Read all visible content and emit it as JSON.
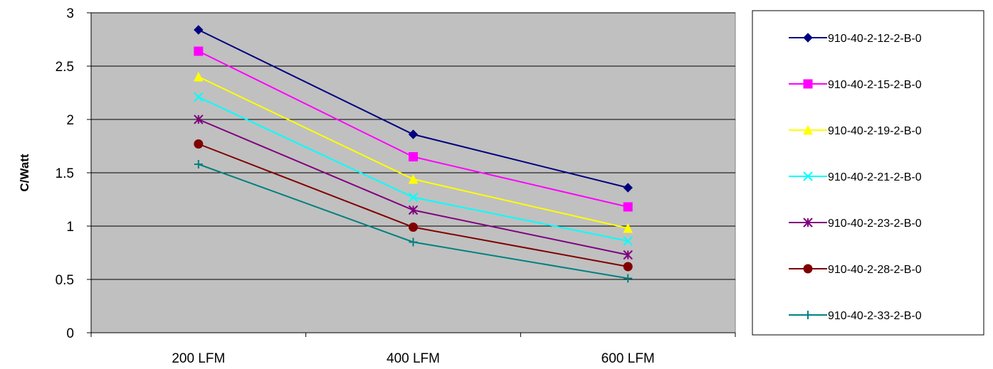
{
  "chart_data": {
    "type": "line",
    "title": "",
    "xlabel": "",
    "ylabel": "C/Watt",
    "categories": [
      "200 LFM",
      "400 LFM",
      "600 LFM"
    ],
    "ylim": [
      0,
      3
    ],
    "yticks": [
      "0",
      "0.5",
      "1",
      "1.5",
      "2",
      "2.5",
      "3"
    ],
    "grid": true,
    "plot_background": "#c0c0c0",
    "legend_position": "right",
    "series": [
      {
        "name": "910-40-2-12-2-B-0",
        "values": [
          2.84,
          1.86,
          1.36
        ],
        "color": "#000080",
        "marker": "diamond"
      },
      {
        "name": "910-40-2-15-2-B-0",
        "values": [
          2.64,
          1.65,
          1.18
        ],
        "color": "#ff00ff",
        "marker": "square"
      },
      {
        "name": "910-40-2-19-2-B-0",
        "values": [
          2.4,
          1.44,
          0.98
        ],
        "color": "#ffff00",
        "marker": "triangle"
      },
      {
        "name": "910-40-2-21-2-B-0",
        "values": [
          2.21,
          1.27,
          0.86
        ],
        "color": "#00ffff",
        "marker": "x"
      },
      {
        "name": "910-40-2-23-2-B-0",
        "values": [
          2.0,
          1.15,
          0.73
        ],
        "color": "#800080",
        "marker": "star"
      },
      {
        "name": "910-40-2-28-2-B-0",
        "values": [
          1.77,
          0.99,
          0.62
        ],
        "color": "#800000",
        "marker": "circle"
      },
      {
        "name": "910-40-2-33-2-B-0",
        "values": [
          1.58,
          0.85,
          0.51
        ],
        "color": "#008080",
        "marker": "plus"
      }
    ]
  }
}
